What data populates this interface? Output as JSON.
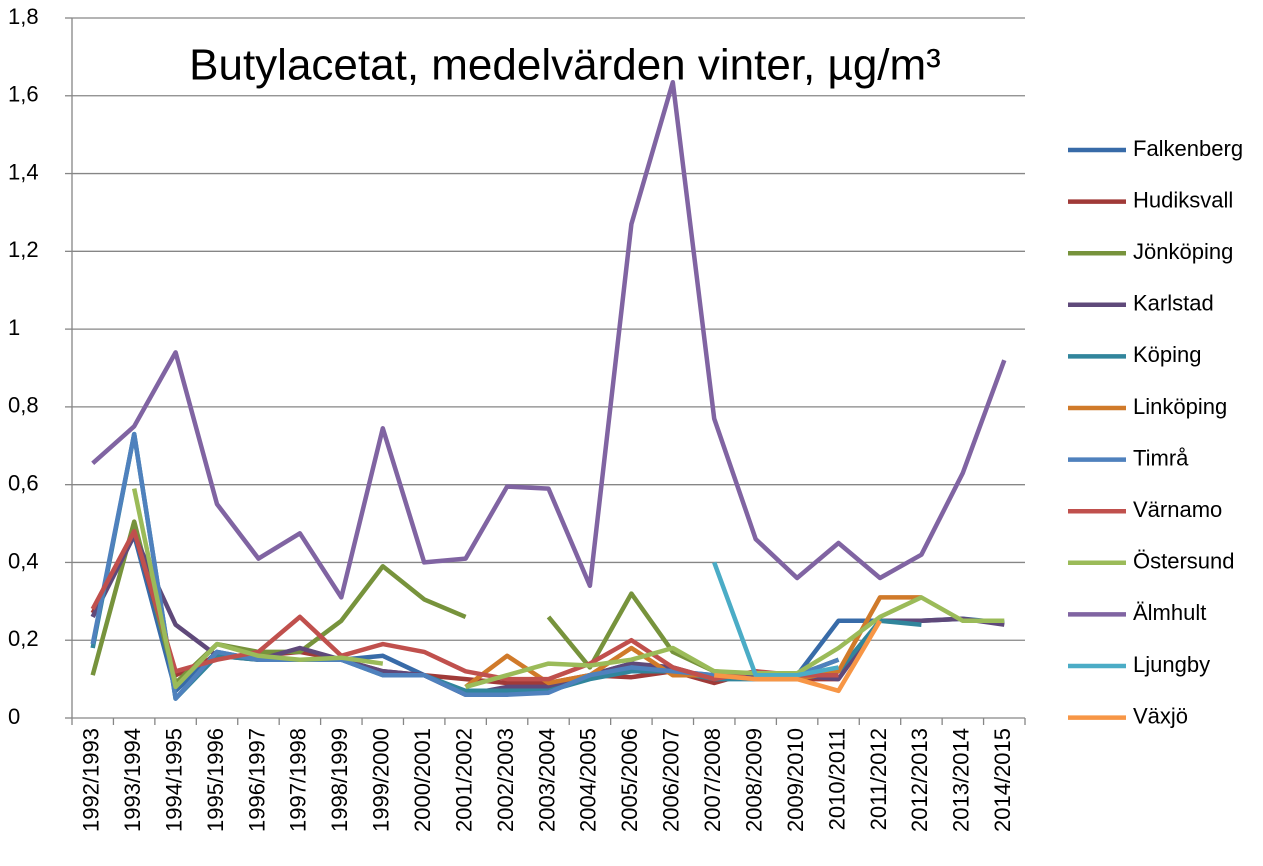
{
  "chart_data": {
    "type": "line",
    "title": "Butylacetat, medelvärden vinter, µg/m³",
    "categories": [
      "1992/1993",
      "1993/1994",
      "1994/1995",
      "1995/1996",
      "1996/1997",
      "1997/1998",
      "1998/1999",
      "1999/2000",
      "2000/2001",
      "2001/2002",
      "2002/2003",
      "2003/2004",
      "2004/2005",
      "2005/2006",
      "2006/2007",
      "2007/2008",
      "2008/2009",
      "2009/2010",
      "2010/2011",
      "2011/2012",
      "2012/2013",
      "2013/2014",
      "2014/2015"
    ],
    "ylim": [
      0,
      1.8
    ],
    "yticks": [
      0,
      {
        "value": 0.2,
        "label": "0,2"
      },
      {
        "value": 0.4,
        "label": "0,4"
      },
      {
        "value": 0.6,
        "label": "0,6"
      },
      {
        "value": 0.8,
        "label": "0,8"
      },
      1,
      {
        "value": 1.2,
        "label": "1,2"
      },
      {
        "value": 1.4,
        "label": "1,4"
      },
      {
        "value": 1.6,
        "label": "1,6"
      },
      {
        "value": 1.8,
        "label": "1,8"
      }
    ],
    "grid": true,
    "legend": "right",
    "series": [
      {
        "name": "Falkenberg",
        "color": "#386ba8",
        "values": [
          0.26,
          0.47,
          0.07,
          0.17,
          0.15,
          0.15,
          0.15,
          0.16,
          0.11,
          0.06,
          0.07,
          0.07,
          0.11,
          0.14,
          0.12,
          0.11,
          0.11,
          0.11,
          0.25,
          0.25,
          0.25,
          0.255,
          0.245
        ]
      },
      {
        "name": "Hudiksvall",
        "color": "#a03a38",
        "values": [
          0.27,
          0.48,
          0.11,
          0.16,
          0.16,
          0.17,
          0.15,
          0.12,
          0.11,
          0.1,
          0.09,
          0.09,
          0.11,
          0.105,
          0.12,
          0.09,
          0.12,
          0.1,
          0.1,
          null,
          null,
          null,
          null
        ]
      },
      {
        "name": "Jönköping",
        "color": "#77933c",
        "values": [
          0.11,
          0.505,
          0.09,
          0.19,
          0.17,
          0.17,
          0.25,
          0.39,
          0.305,
          0.26,
          null,
          0.26,
          0.13,
          0.32,
          0.17,
          0.12,
          0.11,
          0.11,
          0.15,
          null,
          null,
          null,
          null
        ]
      },
      {
        "name": "Karlstad",
        "color": "#5f497a",
        "values": [
          0.26,
          0.47,
          0.24,
          0.16,
          0.15,
          0.18,
          0.15,
          0.12,
          0.11,
          0.06,
          0.08,
          0.08,
          0.11,
          0.14,
          0.13,
          0.1,
          0.11,
          0.11,
          0.1,
          0.25,
          0.25,
          0.255,
          0.24
        ]
      },
      {
        "name": "Köping",
        "color": "#31859c",
        "values": [
          0.18,
          0.73,
          0.05,
          0.16,
          0.15,
          0.15,
          0.15,
          0.11,
          0.11,
          0.07,
          0.07,
          0.07,
          0.1,
          0.12,
          0.12,
          0.1,
          0.1,
          0.1,
          0.12,
          0.25,
          0.24,
          null,
          null
        ]
      },
      {
        "name": "Linköping",
        "color": "#d07a2a",
        "values": [
          null,
          null,
          null,
          null,
          null,
          null,
          null,
          null,
          null,
          0.08,
          0.16,
          0.09,
          0.11,
          0.18,
          0.11,
          0.11,
          0.1,
          0.1,
          0.12,
          0.31,
          0.31,
          null,
          null
        ]
      },
      {
        "name": "Timrå",
        "color": "#4f81bd",
        "values": [
          0.19,
          0.73,
          0.05,
          0.17,
          0.15,
          0.15,
          0.15,
          0.11,
          0.11,
          0.06,
          0.06,
          0.065,
          0.11,
          0.13,
          0.12,
          0.11,
          0.1,
          0.11,
          0.15,
          null,
          null,
          null,
          null
        ]
      },
      {
        "name": "Värnamo",
        "color": "#c0504d",
        "values": [
          0.28,
          0.48,
          0.12,
          0.15,
          0.17,
          0.26,
          0.16,
          0.19,
          0.17,
          0.12,
          0.1,
          0.1,
          0.14,
          0.2,
          0.13,
          0.1,
          0.12,
          0.11,
          0.11,
          null,
          null,
          null,
          null
        ]
      },
      {
        "name": "Östersund",
        "color": "#9bbb59",
        "values": [
          null,
          0.59,
          0.08,
          0.19,
          0.16,
          0.15,
          0.155,
          0.14,
          null,
          0.08,
          0.11,
          0.14,
          0.135,
          0.15,
          0.18,
          0.12,
          0.115,
          0.115,
          0.18,
          0.26,
          0.31,
          0.25,
          0.25
        ]
      },
      {
        "name": "Älmhult",
        "color": "#8064a2",
        "values": [
          0.655,
          0.75,
          0.94,
          0.55,
          0.41,
          0.475,
          0.31,
          0.745,
          0.4,
          0.41,
          0.595,
          0.59,
          0.34,
          1.27,
          1.635,
          0.77,
          0.46,
          0.36,
          0.45,
          0.36,
          0.42,
          0.63,
          0.92
        ]
      },
      {
        "name": "Ljungby",
        "color": "#4bacc6",
        "values": [
          null,
          null,
          null,
          null,
          null,
          null,
          null,
          null,
          null,
          null,
          null,
          null,
          null,
          null,
          null,
          0.4,
          0.11,
          0.11,
          0.13,
          null,
          null,
          null,
          null
        ]
      },
      {
        "name": "Växjö",
        "color": "#f79646",
        "values": [
          null,
          null,
          null,
          null,
          null,
          null,
          null,
          null,
          null,
          null,
          null,
          null,
          null,
          null,
          null,
          0.11,
          0.1,
          0.1,
          0.07,
          0.25,
          null,
          null,
          null
        ]
      }
    ]
  }
}
